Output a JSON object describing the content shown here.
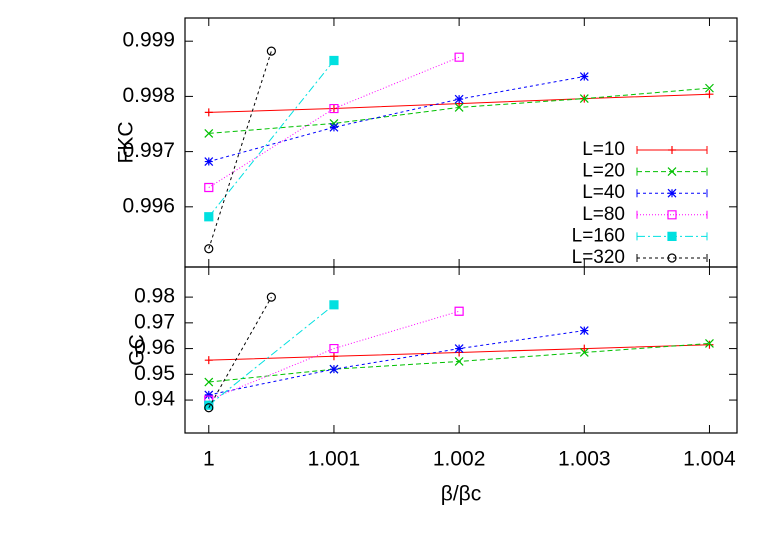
{
  "chart_data": [
    {
      "type": "line",
      "ylabel": "FKC",
      "xlim": [
        0.99981,
        1.00422
      ],
      "xticks": [
        1,
        1.001,
        1.002,
        1.003,
        1.004
      ],
      "ylim": [
        0.99491,
        0.99942
      ],
      "yticks": [
        0.996,
        0.997,
        0.998,
        0.999
      ],
      "legend": "right",
      "series": [
        {
          "name": "L=10",
          "color": "#ff0000",
          "marker": "plus",
          "dash": "none",
          "x": [
            1,
            1.001,
            1.002,
            1.003,
            1.004
          ],
          "values": [
            0.99771,
            0.99778,
            0.99787,
            0.99796,
            0.99804
          ]
        },
        {
          "name": "L=20",
          "color": "#00c000",
          "marker": "cross",
          "dash": "5,3",
          "x": [
            1,
            1.001,
            1.002,
            1.003,
            1.004
          ],
          "values": [
            0.99733,
            0.99751,
            0.9978,
            0.99796,
            0.99815
          ]
        },
        {
          "name": "L=40",
          "color": "#0000ff",
          "marker": "star",
          "dash": "3,3",
          "x": [
            1,
            1.001,
            1.002,
            1.003
          ],
          "values": [
            0.99682,
            0.99744,
            0.99795,
            0.99836
          ]
        },
        {
          "name": "L=80",
          "color": "#ff00ff",
          "marker": "square",
          "dash": "1,2",
          "x": [
            1,
            1.001,
            1.002
          ],
          "values": [
            0.99635,
            0.99778,
            0.99871
          ]
        },
        {
          "name": "L=160",
          "color": "#00e0e0",
          "marker": "filled-square",
          "dash": "8,3,2,3",
          "x": [
            1,
            1.001
          ],
          "values": [
            0.99582,
            0.99865
          ]
        },
        {
          "name": "L=320",
          "color": "#000000",
          "marker": "circle",
          "dash": "3,3",
          "x": [
            1,
            1.0005
          ],
          "values": [
            0.99524,
            0.99882
          ]
        }
      ]
    },
    {
      "type": "line",
      "ylabel": "GC",
      "xlabel": "β/βc",
      "xlim": [
        0.99981,
        1.00422
      ],
      "xticks": [
        1,
        1.001,
        1.002,
        1.003,
        1.004
      ],
      "ylim": [
        0.9272,
        0.9917
      ],
      "yticks": [
        0.94,
        0.95,
        0.96,
        0.97,
        0.98
      ],
      "series": [
        {
          "color": "#ff0000",
          "marker": "plus",
          "dash": "none",
          "x": [
            1,
            1.001,
            1.002,
            1.003,
            1.004
          ],
          "values": [
            0.9555,
            0.957,
            0.9585,
            0.96,
            0.9615
          ]
        },
        {
          "color": "#00c000",
          "marker": "cross",
          "dash": "5,3",
          "x": [
            1,
            1.001,
            1.002,
            1.003,
            1.004
          ],
          "values": [
            0.947,
            0.952,
            0.955,
            0.9585,
            0.962
          ]
        },
        {
          "color": "#0000ff",
          "marker": "star",
          "dash": "3,3",
          "x": [
            1,
            1.001,
            1.002,
            1.003
          ],
          "values": [
            0.942,
            0.952,
            0.96,
            0.967
          ]
        },
        {
          "color": "#ff00ff",
          "marker": "square",
          "dash": "1,2",
          "x": [
            1,
            1.001,
            1.002
          ],
          "values": [
            0.94,
            0.96,
            0.9745
          ]
        },
        {
          "color": "#00e0e0",
          "marker": "filled-square",
          "dash": "8,3,2,3",
          "x": [
            1,
            1.001
          ],
          "values": [
            0.938,
            0.977
          ]
        },
        {
          "color": "#000000",
          "marker": "circle",
          "dash": "3,3",
          "x": [
            1,
            1.0005
          ],
          "values": [
            0.937,
            0.98
          ]
        }
      ]
    }
  ]
}
